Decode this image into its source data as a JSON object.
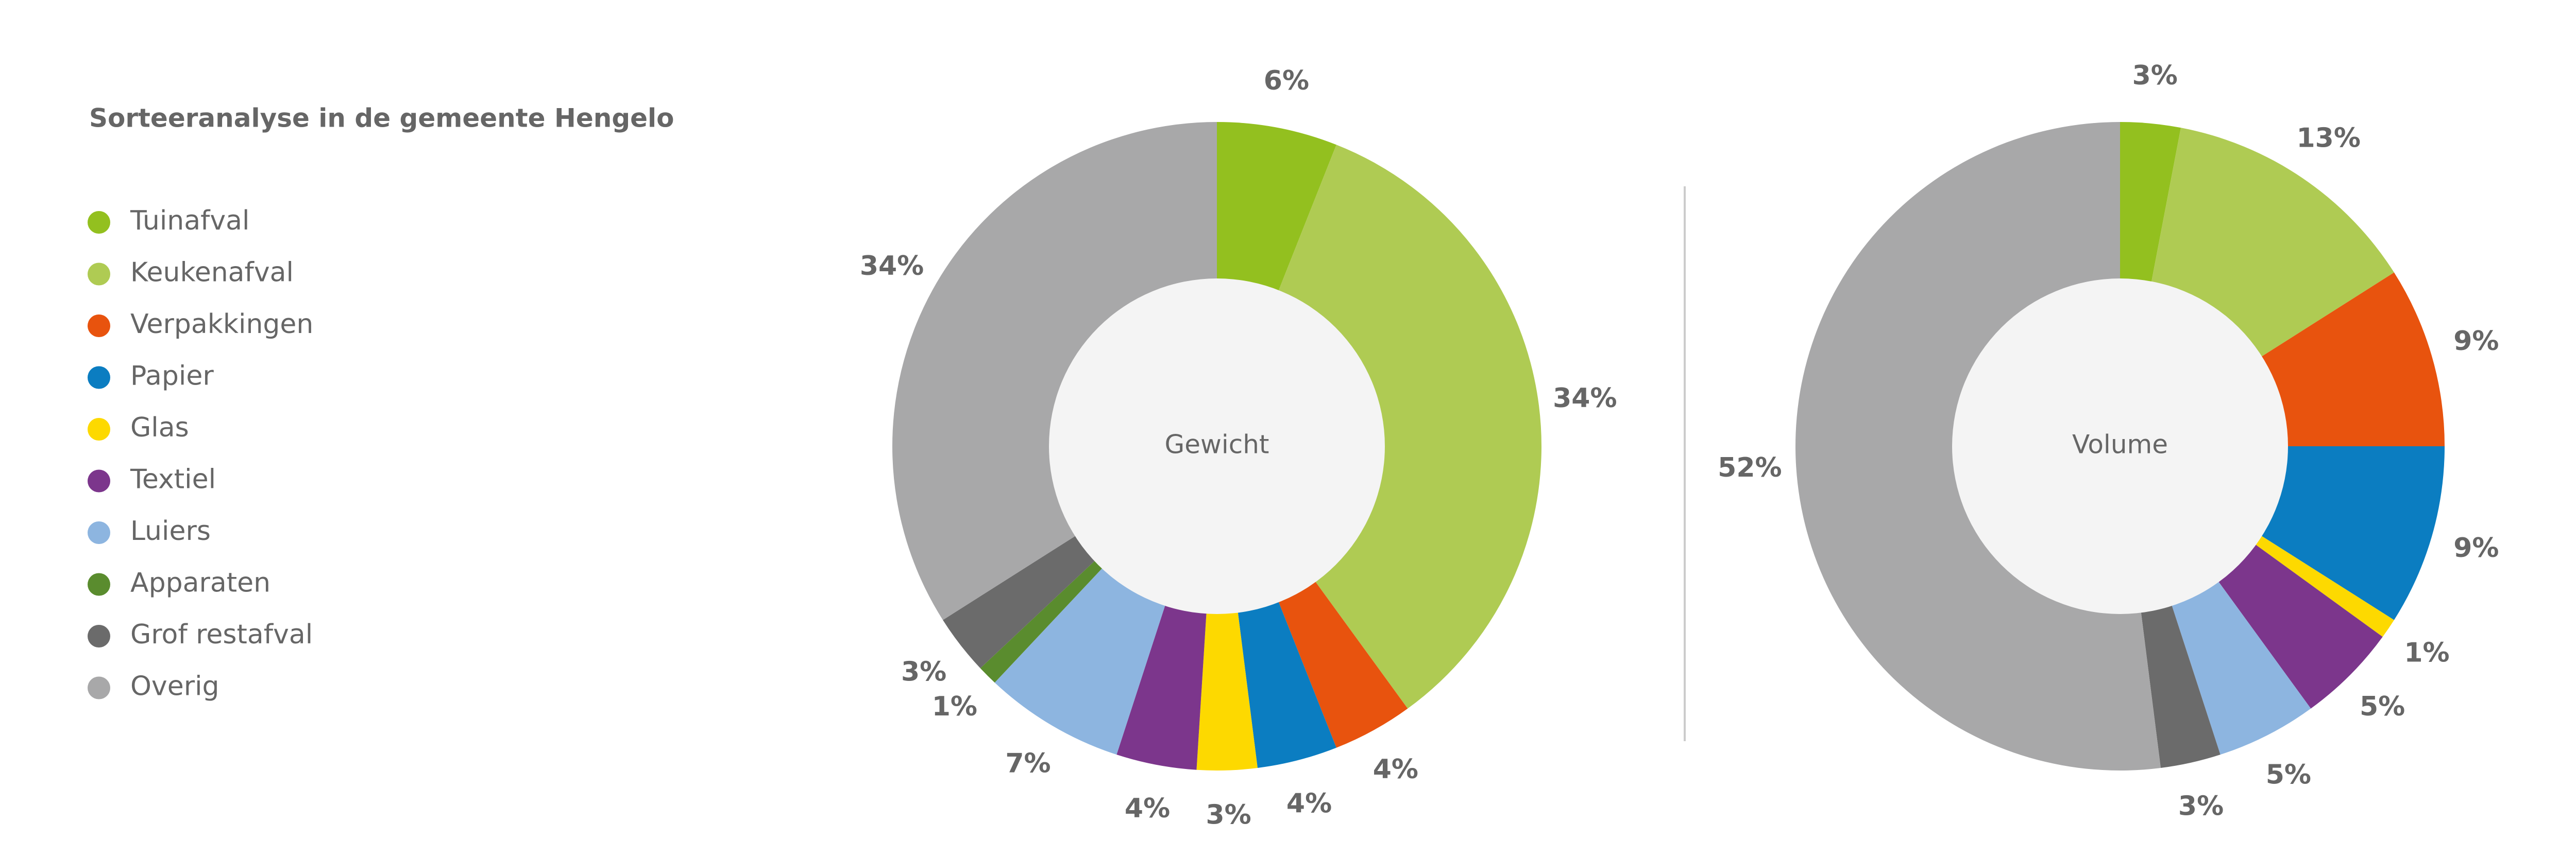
{
  "chart_data": {
    "type": "donut",
    "title": "Sorteeranalyse in de gemeente Hengelo",
    "categories": [
      "Tuinafval",
      "Keukenafval",
      "Verpakkingen",
      "Papier",
      "Glas",
      "Textiel",
      "Luiers",
      "Apparaten",
      "Grof restafval",
      "Overig"
    ],
    "colors": [
      "#93c01f",
      "#afcb53",
      "#e8530e",
      "#0b7dc1",
      "#fdd900",
      "#7c368c",
      "#8db5e0",
      "#5a8c2e",
      "#6b6b6b",
      "#a8a8a9"
    ],
    "series": [
      {
        "name": "Gewicht",
        "values": [
          6,
          34,
          4,
          4,
          3,
          4,
          7,
          1,
          3,
          34
        ],
        "value_labels": [
          "6%",
          "34%",
          "4%",
          "4%",
          "3%",
          "4%",
          "7%",
          "1%",
          "3%",
          "34%"
        ]
      },
      {
        "name": "Volume",
        "values": [
          3,
          13,
          9,
          9,
          1,
          5,
          5,
          null,
          3,
          52
        ],
        "value_labels": [
          "3%",
          "13%",
          "9%",
          "9%",
          "1%",
          "5%",
          "5%",
          null,
          "3%",
          "52%"
        ]
      }
    ]
  }
}
